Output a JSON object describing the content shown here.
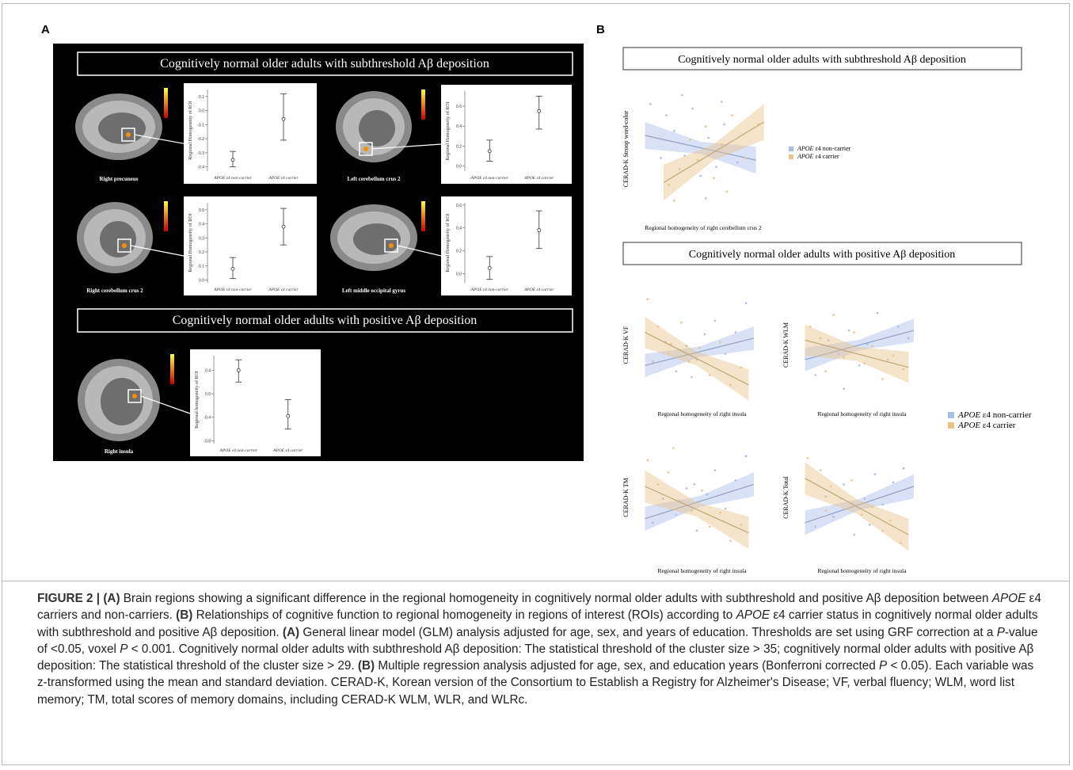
{
  "panel_a": {
    "label": "A",
    "headers": [
      "Cognitively normal older adults with subthreshold Aβ deposition",
      "Cognitively normal older adults with positive Aβ deposition"
    ],
    "plots": [
      {
        "region": "Right precuneus",
        "ylabel": "Regional Homogeneity of ROI",
        "categories": [
          "APOE ε4 non-carrier",
          "APOE ε4 carrier"
        ],
        "ylim": [
          -0.43,
          0.15
        ],
        "yticks": [
          0.1,
          {
            "value": 0,
            "label": "0.0"
          },
          -0.1,
          -0.2,
          -0.3,
          -0.4
        ],
        "means": [
          -0.35,
          -0.06
        ],
        "hi": [
          -0.29,
          0.12
        ],
        "lo": [
          -0.4,
          -0.21
        ]
      },
      {
        "region": "Left cerebellum crus 2",
        "ylabel": "Regional Homogeneity of ROI",
        "categories": [
          "APOE ε4 non-carrier",
          "APOE ε4 carrier"
        ],
        "ylim": [
          -0.05,
          0.75
        ],
        "yticks": [
          0.6,
          0.4,
          0.2,
          {
            "value": 0,
            "label": "0.0"
          }
        ],
        "means": [
          0.15,
          0.55
        ],
        "hi": [
          0.26,
          0.7
        ],
        "lo": [
          0.05,
          0.37
        ]
      },
      {
        "region": "Right cerebellum crus 2",
        "ylabel": "Regional Homogeneity of ROI",
        "categories": [
          "APOE ε4 non-carrier",
          "APOE ε4 carrier"
        ],
        "ylim": [
          -0.02,
          0.55
        ],
        "yticks": [
          0.5,
          0.4,
          0.3,
          0.2,
          0.1,
          {
            "value": 0,
            "label": "0.0"
          }
        ],
        "means": [
          0.08,
          0.38
        ],
        "hi": [
          0.16,
          0.51
        ],
        "lo": [
          0.01,
          0.25
        ]
      },
      {
        "region": "Left middle occipital gyrus",
        "ylabel": "Regional Homogeneity of ROI",
        "categories": [
          "APOE ε4 non-carrier",
          "APOE ε4 carrier"
        ],
        "ylim": [
          -0.08,
          0.62
        ],
        "yticks": [
          0.6,
          0.4,
          0.2,
          {
            "value": 0,
            "label": "0.0"
          }
        ],
        "means": [
          0.05,
          0.38
        ],
        "hi": [
          0.15,
          0.55
        ],
        "lo": [
          -0.05,
          0.22
        ]
      },
      {
        "region": "Right insula",
        "ylabel": "Regional homogeneity of ROI",
        "categories": [
          "APOE ε4 non-carrier",
          "APOE ε4 carrier"
        ],
        "ylim": [
          -0.85,
          0.65
        ],
        "yticks": [
          0.4,
          {
            "value": 0,
            "label": "0.0"
          },
          -0.4,
          -0.8
        ],
        "means": [
          0.4,
          -0.38
        ],
        "hi": [
          0.58,
          -0.1
        ],
        "lo": [
          0.2,
          -0.6
        ]
      }
    ]
  },
  "panel_b": {
    "label": "B",
    "headers": [
      "Cognitively normal older adults with subthreshold Aβ deposition",
      "Cognitively normal older adults with positive Aβ deposition"
    ],
    "legend": [
      {
        "gene": "APOE",
        "label": "ε4 non-carrier",
        "color": "#a9bde8"
      },
      {
        "gene": "APOE",
        "label": "ε4 carrier",
        "color": "#e6c48a"
      }
    ],
    "plots": [
      {
        "type": "scatter",
        "ylabel": "CERAD-K Stroop word-color",
        "xlabel": "Regional homogeneity of right cerebellum crus 2",
        "xlim": [
          -2.2,
          2.6
        ],
        "ylim": [
          -3,
          3
        ],
        "series": [
          {
            "x": [
              -1.8,
              -1.2,
              -0.9,
              -0.5,
              -0.2,
              0.1,
              0.4,
              0.7,
              1.0,
              1.5,
              -0.6,
              0.3,
              -1.4,
              0.9
            ],
            "y": [
              2.0,
              1.5,
              0.8,
              -0.3,
              1.8,
              -1.2,
              0.5,
              -0.8,
              1.1,
              -0.6,
              2.4,
              -2.2,
              -0.4,
              2.1
            ],
            "fit_x": [
              -2,
              2.2
            ],
            "fit_y": [
              0.6,
              -0.5
            ],
            "band": 0.6
          },
          {
            "x": [
              -1.1,
              -0.7,
              -0.3,
              0,
              0.3,
              0.6,
              0.9,
              1.3,
              1.8,
              2.3,
              -0.9,
              1.1
            ],
            "y": [
              -1.6,
              -0.9,
              0.4,
              -0.5,
              1.0,
              -1.3,
              0.2,
              1.5,
              -0.4,
              1.1,
              -2.3,
              -1.9
            ],
            "fit_x": [
              -1.3,
              2.5
            ],
            "fit_y": [
              -1.5,
              1.2
            ],
            "band": 0.8
          }
        ]
      },
      {
        "type": "scatter",
        "ylabel": "CERAD-K VF",
        "xlabel": "Regional homogeneity of right insula",
        "xlim": [
          -2.2,
          2.6
        ],
        "ylim": [
          -2.5,
          3
        ],
        "series": [
          {
            "x": [
              -1.7,
              -1.2,
              -0.8,
              -0.4,
              0,
              0.3,
              0.7,
              1.1,
              1.5,
              1.9,
              -0.2
            ],
            "y": [
              -0.6,
              0.4,
              -1.1,
              0.2,
              -0.5,
              0.8,
              1.5,
              -0.2,
              0.9,
              2.4,
              -1.4
            ],
            "fit_x": [
              -2,
              2.2
            ],
            "fit_y": [
              -0.8,
              0.6
            ],
            "band": 0.6
          },
          {
            "x": [
              -1.9,
              -1.5,
              -1.0,
              -0.6,
              -0.3,
              0.1,
              0.5,
              0.9,
              1.3,
              1.7,
              -1.1
            ],
            "y": [
              2.6,
              1.2,
              0.3,
              1.4,
              -0.6,
              0.1,
              -1.3,
              0.4,
              -1.8,
              -0.9,
              -0.2
            ],
            "fit_x": [
              -2,
              2
            ],
            "fit_y": [
              0.9,
              -1.8
            ],
            "band": 0.8
          }
        ]
      },
      {
        "type": "scatter",
        "ylabel": "CERAD-K WLM",
        "xlabel": "Regional homogeneity of right insula",
        "xlim": [
          -2.2,
          2.6
        ],
        "ylim": [
          -2.5,
          3
        ],
        "series": [
          {
            "x": [
              -1.6,
              -1.1,
              -0.7,
              -0.3,
              0.1,
              0.4,
              0.8,
              1.2,
              1.6,
              2.0,
              -0.5
            ],
            "y": [
              -1.3,
              0.5,
              -0.2,
              1.0,
              -0.8,
              0.3,
              1.9,
              -0.5,
              1.2,
              0.6,
              -2.0
            ],
            "fit_x": [
              -2,
              2.2
            ],
            "fit_y": [
              -0.5,
              1.0
            ],
            "band": 0.6
          },
          {
            "x": [
              -1.8,
              -1.4,
              -0.9,
              -0.5,
              -0.1,
              0.3,
              0.6,
              1.0,
              1.4,
              1.8,
              -1.2
            ],
            "y": [
              1.2,
              0.6,
              1.8,
              -0.4,
              0.9,
              -0.7,
              0.2,
              -1.5,
              -0.3,
              -1.0,
              -1.1
            ],
            "fit_x": [
              -2,
              2
            ],
            "fit_y": [
              0.5,
              -0.9
            ],
            "band": 0.8
          }
        ]
      },
      {
        "type": "scatter",
        "ylabel": "CERAD-K TM",
        "xlabel": "Regional homogeneity of right insula",
        "xlim": [
          -2.2,
          2.6
        ],
        "ylim": [
          -2.5,
          3
        ],
        "series": [
          {
            "x": [
              -1.7,
              -1.3,
              -0.8,
              -0.4,
              0,
              0.4,
              0.7,
              1.1,
              1.5,
              1.9,
              -0.1
            ],
            "y": [
              -1.0,
              0.2,
              -0.6,
              0.7,
              -1.4,
              0.4,
              1.6,
              -0.3,
              1.1,
              2.3,
              0.9
            ],
            "fit_x": [
              -2,
              2.2
            ],
            "fit_y": [
              -0.8,
              0.9
            ],
            "band": 0.6
          },
          {
            "x": [
              -1.9,
              -1.5,
              -1.1,
              -0.7,
              -0.2,
              0.2,
              0.5,
              0.9,
              1.3,
              1.7,
              -0.9
            ],
            "y": [
              2.1,
              0.9,
              1.5,
              0.1,
              -0.4,
              0.6,
              -1.2,
              -0.5,
              -1.9,
              -1.1,
              2.7
            ],
            "fit_x": [
              -2,
              2
            ],
            "fit_y": [
              0.8,
              -1.5
            ],
            "band": 0.8
          }
        ]
      },
      {
        "type": "scatter",
        "ylabel": "CERAD-K Total",
        "xlabel": "Regional homogeneity of right insula",
        "xlim": [
          -2.2,
          2.6
        ],
        "ylim": [
          -2.5,
          3
        ],
        "series": [
          {
            "x": [
              -1.6,
              -1.2,
              -0.9,
              -0.5,
              -0.1,
              0.3,
              0.7,
              1.0,
              1.4,
              1.8,
              0.5
            ],
            "y": [
              -1.2,
              0.3,
              -0.7,
              0.9,
              -1.6,
              0.2,
              1.4,
              -0.1,
              1.0,
              1.7,
              -1.1
            ],
            "fit_x": [
              -2,
              2.2
            ],
            "fit_y": [
              -1.0,
              0.8
            ],
            "band": 0.6
          },
          {
            "x": [
              -1.9,
              -1.4,
              -1.0,
              -0.6,
              -0.2,
              0.2,
              0.6,
              1.0,
              1.3,
              1.7,
              -1.2
            ],
            "y": [
              2.2,
              1.6,
              0.8,
              0.2,
              1.1,
              -0.6,
              -0.2,
              -1.4,
              -0.9,
              -2.0,
              -0.4
            ],
            "fit_x": [
              -2,
              2
            ],
            "fit_y": [
              1.2,
              -1.6
            ],
            "band": 0.8
          }
        ]
      }
    ]
  },
  "caption": [
    {
      "text": "FIGURE 2 | (A)",
      "style": "bold"
    },
    {
      "text": " Brain regions showing a significant difference in the regional homogeneity in cognitively normal older adults with subthreshold and positive Aβ deposition between ",
      "style": "normal"
    },
    {
      "text": "APOE",
      "style": "italic"
    },
    {
      "text": " ε4 carriers and non-carriers. ",
      "style": "normal"
    },
    {
      "text": "(B)",
      "style": "bold"
    },
    {
      "text": " Relationships of cognitive function to regional homogeneity in regions of interest (ROIs) according to ",
      "style": "normal"
    },
    {
      "text": "APOE",
      "style": "italic"
    },
    {
      "text": " ε4 carrier status in cognitively normal older adults with subthreshold and positive Aβ deposition. ",
      "style": "normal"
    },
    {
      "text": "(A)",
      "style": "bold"
    },
    {
      "text": " General linear model (GLM) analysis adjusted for age, sex, and years of education. Thresholds are set using GRF correction at a ",
      "style": "normal"
    },
    {
      "text": "P",
      "style": "italic"
    },
    {
      "text": "-value of <0.05, voxel ",
      "style": "normal"
    },
    {
      "text": "P",
      "style": "italic"
    },
    {
      "text": " < 0.001. Cognitively normal older adults with subthreshold Aβ deposition: The statistical threshold of the cluster size > 35; cognitively normal older adults with positive Aβ deposition: The statistical threshold of the cluster size > 29. ",
      "style": "normal"
    },
    {
      "text": "(B)",
      "style": "bold"
    },
    {
      "text": " Multiple regression analysis adjusted for age, sex, and education years (Bonferroni corrected ",
      "style": "normal"
    },
    {
      "text": "P",
      "style": "italic"
    },
    {
      "text": " < 0.05). Each variable was z-transformed using the mean and standard deviation. CERAD-K, Korean version of the Consortium to Establish a Registry for Alzheimer's Disease; VF, verbal fluency; WLM, word list memory; TM, total scores of memory domains, including CERAD-K WLM, WLR, and WLRc.",
      "style": "normal"
    }
  ]
}
